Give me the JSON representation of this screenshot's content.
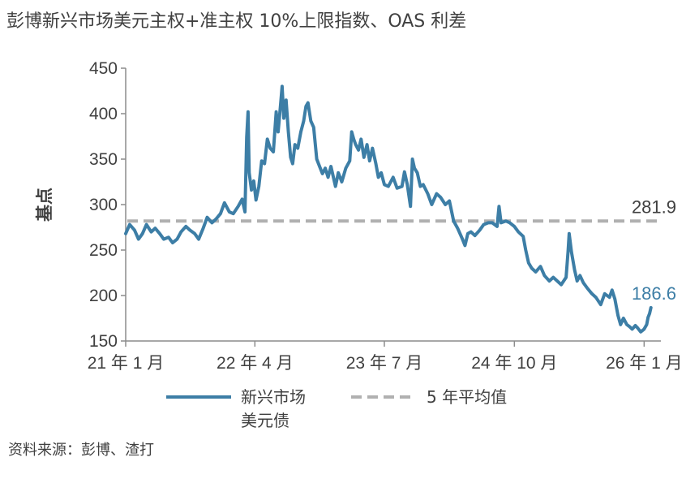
{
  "chart_data": {
    "type": "line",
    "title": "彭博新兴市场美元主权+准主权 10%上限指数、OAS 利差",
    "ylabel": "基点",
    "xlabel": "",
    "ylim": [
      150,
      450
    ],
    "yticks": [
      150,
      200,
      250,
      300,
      350,
      400,
      450
    ],
    "xlim": [
      "2021-01-01",
      "2026-03-01"
    ],
    "xticks": [
      {
        "date": "2021-01-01",
        "label": "21 年 1 月"
      },
      {
        "date": "2022-04-01",
        "label": "22 年 4 月"
      },
      {
        "date": "2023-07-01",
        "label": "23 年 7 月"
      },
      {
        "date": "2024-10-01",
        "label": "24 年 10 月"
      },
      {
        "date": "2026-01-01",
        "label": "26 年 1 月"
      }
    ],
    "grid": false,
    "legend_position": "bottom",
    "series": [
      {
        "name": "新兴市场美元债",
        "color": "#3d7ea6",
        "points": [
          [
            "2021-01-01",
            268
          ],
          [
            "2021-01-15",
            278
          ],
          [
            "2021-02-01",
            272
          ],
          [
            "2021-02-15",
            262
          ],
          [
            "2021-03-01",
            268
          ],
          [
            "2021-03-15",
            278
          ],
          [
            "2021-04-01",
            270
          ],
          [
            "2021-04-15",
            274
          ],
          [
            "2021-05-01",
            268
          ],
          [
            "2021-05-15",
            262
          ],
          [
            "2021-06-01",
            264
          ],
          [
            "2021-06-15",
            258
          ],
          [
            "2021-07-01",
            262
          ],
          [
            "2021-07-15",
            270
          ],
          [
            "2021-08-01",
            276
          ],
          [
            "2021-08-15",
            272
          ],
          [
            "2021-09-01",
            268
          ],
          [
            "2021-09-15",
            262
          ],
          [
            "2021-10-01",
            274
          ],
          [
            "2021-10-15",
            286
          ],
          [
            "2021-11-01",
            280
          ],
          [
            "2021-11-15",
            284
          ],
          [
            "2021-12-01",
            290
          ],
          [
            "2021-12-15",
            302
          ],
          [
            "2022-01-01",
            292
          ],
          [
            "2022-01-15",
            290
          ],
          [
            "2022-02-01",
            298
          ],
          [
            "2022-02-15",
            306
          ],
          [
            "2022-02-25",
            292
          ],
          [
            "2022-03-03",
            374
          ],
          [
            "2022-03-08",
            402
          ],
          [
            "2022-03-12",
            335
          ],
          [
            "2022-03-20",
            316
          ],
          [
            "2022-03-28",
            326
          ],
          [
            "2022-04-05",
            305
          ],
          [
            "2022-04-15",
            320
          ],
          [
            "2022-04-25",
            348
          ],
          [
            "2022-05-05",
            345
          ],
          [
            "2022-05-15",
            372
          ],
          [
            "2022-05-25",
            362
          ],
          [
            "2022-06-05",
            358
          ],
          [
            "2022-06-15",
            402
          ],
          [
            "2022-06-22",
            380
          ],
          [
            "2022-07-01",
            412
          ],
          [
            "2022-07-06",
            430
          ],
          [
            "2022-07-12",
            395
          ],
          [
            "2022-07-20",
            415
          ],
          [
            "2022-07-28",
            380
          ],
          [
            "2022-08-05",
            352
          ],
          [
            "2022-08-12",
            345
          ],
          [
            "2022-08-20",
            366
          ],
          [
            "2022-08-30",
            362
          ],
          [
            "2022-09-10",
            380
          ],
          [
            "2022-09-20",
            392
          ],
          [
            "2022-09-28",
            408
          ],
          [
            "2022-10-05",
            412
          ],
          [
            "2022-10-15",
            392
          ],
          [
            "2022-10-25",
            385
          ],
          [
            "2022-11-05",
            350
          ],
          [
            "2022-11-15",
            342
          ],
          [
            "2022-11-25",
            334
          ],
          [
            "2022-12-05",
            340
          ],
          [
            "2022-12-15",
            330
          ],
          [
            "2022-12-25",
            342
          ],
          [
            "2023-01-10",
            320
          ],
          [
            "2023-01-20",
            335
          ],
          [
            "2023-02-01",
            325
          ],
          [
            "2023-02-15",
            340
          ],
          [
            "2023-03-01",
            348
          ],
          [
            "2023-03-08",
            380
          ],
          [
            "2023-03-15",
            372
          ],
          [
            "2023-03-22",
            366
          ],
          [
            "2023-04-01",
            360
          ],
          [
            "2023-04-10",
            372
          ],
          [
            "2023-04-20",
            352
          ],
          [
            "2023-05-01",
            366
          ],
          [
            "2023-05-10",
            348
          ],
          [
            "2023-05-20",
            362
          ],
          [
            "2023-06-01",
            345
          ],
          [
            "2023-06-10",
            330
          ],
          [
            "2023-06-20",
            335
          ],
          [
            "2023-07-01",
            322
          ],
          [
            "2023-07-15",
            320
          ],
          [
            "2023-08-01",
            330
          ],
          [
            "2023-08-15",
            318
          ],
          [
            "2023-09-01",
            320
          ],
          [
            "2023-09-10",
            336
          ],
          [
            "2023-09-20",
            322
          ],
          [
            "2023-10-01",
            298
          ],
          [
            "2023-10-08",
            350
          ],
          [
            "2023-10-15",
            340
          ],
          [
            "2023-10-25",
            335
          ],
          [
            "2023-11-05",
            320
          ],
          [
            "2023-11-15",
            322
          ],
          [
            "2023-12-01",
            312
          ],
          [
            "2023-12-15",
            300
          ],
          [
            "2024-01-01",
            312
          ],
          [
            "2024-01-15",
            308
          ],
          [
            "2024-02-01",
            300
          ],
          [
            "2024-02-15",
            304
          ],
          [
            "2024-03-01",
            282
          ],
          [
            "2024-03-15",
            274
          ],
          [
            "2024-04-01",
            262
          ],
          [
            "2024-04-10",
            255
          ],
          [
            "2024-04-20",
            268
          ],
          [
            "2024-05-01",
            270
          ],
          [
            "2024-05-15",
            266
          ],
          [
            "2024-06-01",
            272
          ],
          [
            "2024-06-15",
            278
          ],
          [
            "2024-07-01",
            280
          ],
          [
            "2024-07-15",
            280
          ],
          [
            "2024-08-01",
            276
          ],
          [
            "2024-08-08",
            298
          ],
          [
            "2024-08-15",
            280
          ],
          [
            "2024-09-01",
            282
          ],
          [
            "2024-09-15",
            280
          ],
          [
            "2024-10-01",
            276
          ],
          [
            "2024-10-15",
            270
          ],
          [
            "2024-11-01",
            265
          ],
          [
            "2024-11-10",
            250
          ],
          [
            "2024-11-20",
            236
          ],
          [
            "2024-12-01",
            230
          ],
          [
            "2024-12-15",
            226
          ],
          [
            "2025-01-01",
            232
          ],
          [
            "2025-01-15",
            222
          ],
          [
            "2025-02-01",
            216
          ],
          [
            "2025-02-15",
            220
          ],
          [
            "2025-03-01",
            216
          ],
          [
            "2025-03-15",
            212
          ],
          [
            "2025-04-01",
            220
          ],
          [
            "2025-04-08",
            248
          ],
          [
            "2025-04-12",
            268
          ],
          [
            "2025-04-20",
            248
          ],
          [
            "2025-05-01",
            228
          ],
          [
            "2025-05-10",
            216
          ],
          [
            "2025-05-20",
            222
          ],
          [
            "2025-06-01",
            214
          ],
          [
            "2025-06-15",
            208
          ],
          [
            "2025-07-01",
            202
          ],
          [
            "2025-07-15",
            198
          ],
          [
            "2025-08-01",
            190
          ],
          [
            "2025-08-15",
            202
          ],
          [
            "2025-09-01",
            198
          ],
          [
            "2025-09-10",
            206
          ],
          [
            "2025-09-20",
            196
          ],
          [
            "2025-10-01",
            178
          ],
          [
            "2025-10-10",
            168
          ],
          [
            "2025-10-20",
            175
          ],
          [
            "2025-11-01",
            168
          ],
          [
            "2025-11-10",
            166
          ],
          [
            "2025-11-20",
            163
          ],
          [
            "2025-12-01",
            167
          ],
          [
            "2025-12-10",
            164
          ],
          [
            "2025-12-20",
            160
          ],
          [
            "2026-01-01",
            163
          ],
          [
            "2026-01-10",
            168
          ],
          [
            "2026-01-15",
            176
          ],
          [
            "2026-01-20",
            180
          ],
          [
            "2026-01-25",
            186.6
          ]
        ]
      },
      {
        "name": "5 年平均值",
        "color": "#b0b0b0",
        "dashed": true,
        "value": 281.9
      }
    ],
    "annotations": [
      {
        "text": "281.9",
        "series": "5 年平均值",
        "color": "#404040"
      },
      {
        "text": "186.6",
        "series": "新兴市场美元债",
        "color": "#3d7ea6"
      }
    ],
    "legend": [
      {
        "lines": [
          "新兴市场",
          "美元债"
        ],
        "style": "solid",
        "color": "#3d7ea6"
      },
      {
        "lines": [
          "5 年平均值"
        ],
        "style": "dashed",
        "color": "#b0b0b0"
      }
    ]
  },
  "source": "资料来源：彭博、渣打"
}
